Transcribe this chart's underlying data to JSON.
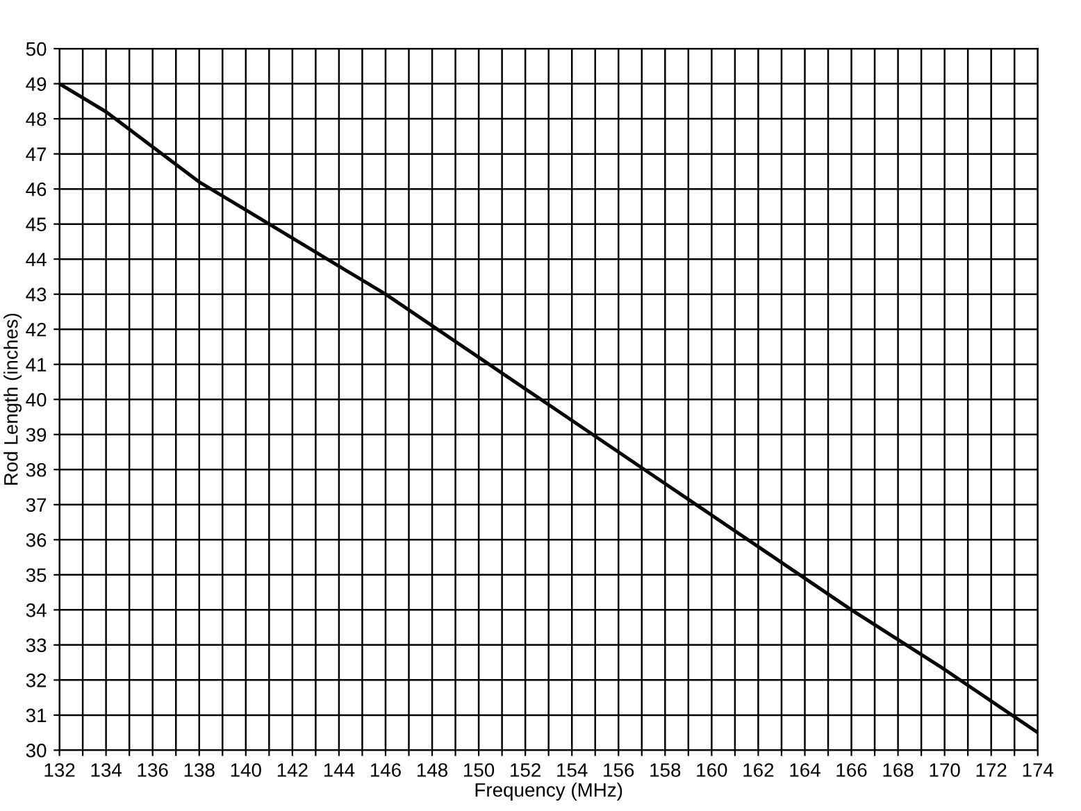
{
  "chart_data": {
    "type": "line",
    "xlabel": "Frequency (MHz)",
    "ylabel": "Rod Length (inches)",
    "x": [
      132,
      134,
      136,
      138,
      140,
      142,
      144,
      146,
      150,
      154,
      158,
      162,
      166,
      170,
      174
    ],
    "series": [
      {
        "color": "#000000",
        "values": [
          49,
          48.2,
          47.2,
          46.2,
          45.4,
          44.6,
          43.8,
          43,
          41.2,
          39.4,
          37.6,
          35.8,
          34,
          32.3,
          30.5
        ]
      }
    ],
    "xlim": [
      132,
      174
    ],
    "ylim": [
      30,
      50
    ],
    "xticks": [
      132,
      {
        "value": 133,
        "label": null
      },
      134,
      {
        "value": 135,
        "label": null
      },
      136,
      {
        "value": 137,
        "label": null
      },
      138,
      {
        "value": 139,
        "label": null
      },
      140,
      {
        "value": 141,
        "label": null
      },
      142,
      {
        "value": 143,
        "label": null
      },
      144,
      {
        "value": 145,
        "label": null
      },
      146,
      {
        "value": 147,
        "label": null
      },
      148,
      {
        "value": 149,
        "label": null
      },
      150,
      {
        "value": 151,
        "label": null
      },
      152,
      {
        "value": 153,
        "label": null
      },
      154,
      {
        "value": 155,
        "label": null
      },
      156,
      {
        "value": 157,
        "label": null
      },
      158,
      {
        "value": 159,
        "label": null
      },
      160,
      {
        "value": 161,
        "label": null
      },
      162,
      {
        "value": 163,
        "label": null
      },
      164,
      {
        "value": 165,
        "label": null
      },
      166,
      {
        "value": 167,
        "label": null
      },
      168,
      {
        "value": 169,
        "label": null
      },
      170,
      {
        "value": 171,
        "label": null
      },
      172,
      {
        "value": 173,
        "label": null
      },
      174
    ],
    "yticks": [
      30,
      31,
      32,
      33,
      34,
      35,
      36,
      37,
      38,
      39,
      40,
      41,
      42,
      43,
      44,
      45,
      46,
      47,
      48,
      49,
      50
    ],
    "grid": true,
    "marker": "none",
    "line_style": "solid",
    "legend": false
  }
}
